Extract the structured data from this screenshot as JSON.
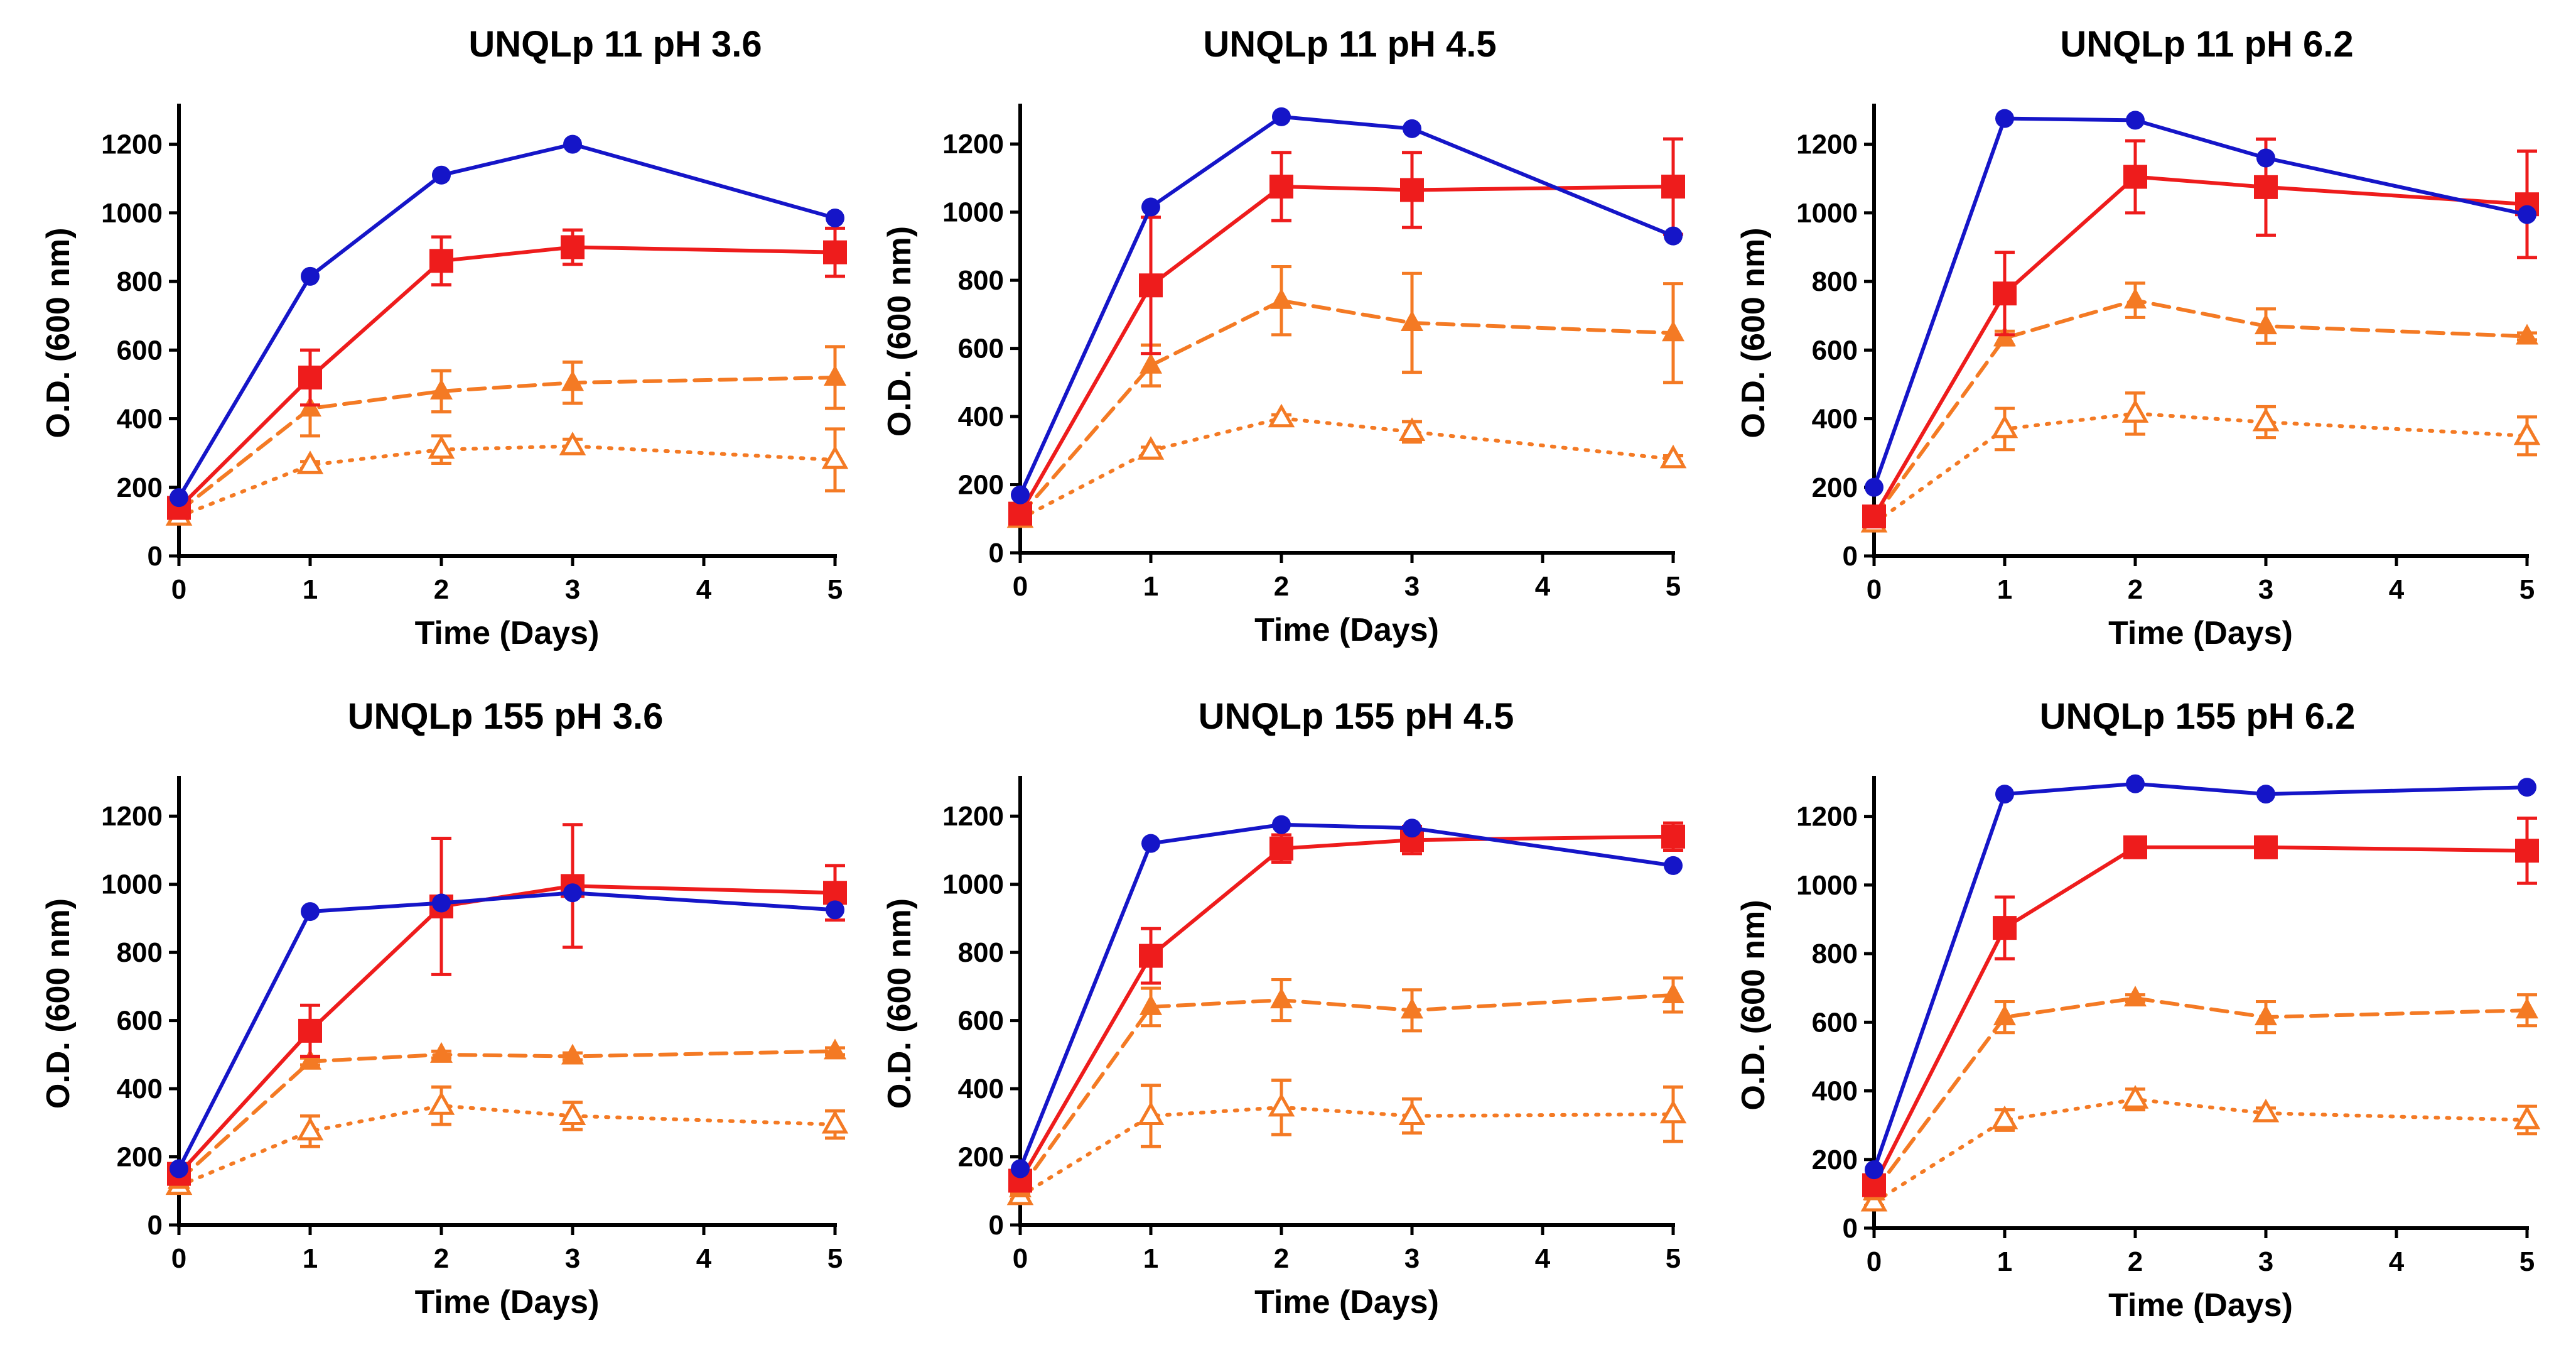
{
  "colors": {
    "blue": "#1515c8",
    "red": "#ee1c1c",
    "orange": "#f47a24"
  },
  "chart_data": [
    {
      "type": "line",
      "title": "UNQLp 11 pH 3.6",
      "xlabel": "Time (Days)",
      "ylabel": "O.D. (600 nm)",
      "xlim": [
        0,
        5
      ],
      "ylim": [
        0,
        1300
      ],
      "xticks": [
        "0",
        "1",
        "2",
        "3",
        "4",
        "5"
      ],
      "yticks": [
        "0",
        "200",
        "400",
        "600",
        "800",
        "1000",
        "1200"
      ],
      "series": [
        {
          "name": "blue-circles",
          "x": [
            0,
            1,
            2,
            3,
            5
          ],
          "values": [
            170,
            815,
            1110,
            1200,
            985
          ],
          "errors": [
            0,
            0,
            0,
            0,
            0
          ]
        },
        {
          "name": "red-squares",
          "x": [
            0,
            1,
            2,
            3,
            5
          ],
          "values": [
            140,
            520,
            860,
            900,
            885
          ],
          "errors": [
            20,
            80,
            70,
            50,
            70
          ]
        },
        {
          "name": "orange-filled-triangles",
          "x": [
            0,
            1,
            2,
            3,
            5
          ],
          "values": [
            130,
            430,
            480,
            505,
            520
          ],
          "errors": [
            20,
            80,
            60,
            60,
            90
          ]
        },
        {
          "name": "orange-open-triangles",
          "x": [
            0,
            1,
            2,
            3,
            5
          ],
          "values": [
            115,
            265,
            310,
            320,
            280
          ],
          "errors": [
            10,
            10,
            40,
            20,
            90
          ]
        }
      ]
    },
    {
      "type": "line",
      "title": "UNQLp 11 pH 4.5",
      "xlabel": "Time (Days)",
      "ylabel": "O.D. (600 nm)",
      "xlim": [
        0,
        5
      ],
      "ylim": [
        0,
        1300
      ],
      "xticks": [
        "0",
        "1",
        "2",
        "3",
        "4",
        "5"
      ],
      "yticks": [
        "0",
        "200",
        "400",
        "600",
        "800",
        "1000",
        "1200"
      ],
      "series": [
        {
          "name": "blue-circles",
          "x": [
            0,
            1,
            2,
            3,
            5
          ],
          "values": [
            170,
            1015,
            1280,
            1245,
            930
          ],
          "errors": [
            0,
            0,
            0,
            0,
            0
          ]
        },
        {
          "name": "red-squares",
          "x": [
            0,
            1,
            2,
            3,
            5
          ],
          "values": [
            115,
            785,
            1075,
            1065,
            1075
          ],
          "errors": [
            20,
            200,
            100,
            110,
            140
          ]
        },
        {
          "name": "orange-filled-triangles",
          "x": [
            0,
            1,
            2,
            3,
            5
          ],
          "values": [
            110,
            550,
            740,
            675,
            645
          ],
          "errors": [
            20,
            60,
            100,
            145,
            145
          ]
        },
        {
          "name": "orange-open-triangles",
          "x": [
            0,
            1,
            2,
            3,
            5
          ],
          "values": [
            100,
            300,
            395,
            355,
            275
          ],
          "errors": [
            10,
            10,
            10,
            30,
            10
          ]
        }
      ]
    },
    {
      "type": "line",
      "title": "UNQLp 11 pH 6.2",
      "xlabel": "Time (Days)",
      "ylabel": "O.D. (600 nm)",
      "xlim": [
        0,
        5
      ],
      "ylim": [
        0,
        1300
      ],
      "xticks": [
        "0",
        "1",
        "2",
        "3",
        "4",
        "5"
      ],
      "yticks": [
        "0",
        "200",
        "400",
        "600",
        "800",
        "1000",
        "1200"
      ],
      "series": [
        {
          "name": "blue-circles",
          "x": [
            0,
            1,
            2,
            3,
            5
          ],
          "values": [
            200,
            1275,
            1270,
            1160,
            995
          ],
          "errors": [
            0,
            0,
            0,
            0,
            0
          ]
        },
        {
          "name": "red-squares",
          "x": [
            0,
            1,
            2,
            3,
            5
          ],
          "values": [
            115,
            765,
            1105,
            1075,
            1025
          ],
          "errors": [
            20,
            120,
            105,
            140,
            155
          ]
        },
        {
          "name": "orange-filled-triangles",
          "x": [
            0,
            1,
            2,
            3,
            5
          ],
          "values": [
            110,
            635,
            745,
            670,
            640
          ],
          "errors": [
            15,
            20,
            50,
            50,
            10
          ]
        },
        {
          "name": "orange-open-triangles",
          "x": [
            0,
            1,
            2,
            3,
            5
          ],
          "values": [
            95,
            370,
            415,
            390,
            350
          ],
          "errors": [
            10,
            60,
            60,
            45,
            55
          ]
        }
      ]
    },
    {
      "type": "line",
      "title": "UNQLp 155 pH 3.6",
      "xlabel": "Time (Days)",
      "ylabel": "O.D. (600 nm)",
      "xlim": [
        0,
        5
      ],
      "ylim": [
        0,
        1300
      ],
      "xticks": [
        "0",
        "1",
        "2",
        "3",
        "4",
        "5"
      ],
      "yticks": [
        "0",
        "200",
        "400",
        "600",
        "800",
        "1000",
        "1200"
      ],
      "series": [
        {
          "name": "blue-circles",
          "x": [
            0,
            1,
            2,
            3,
            5
          ],
          "values": [
            165,
            920,
            945,
            975,
            925
          ],
          "errors": [
            0,
            0,
            0,
            0,
            0
          ]
        },
        {
          "name": "red-squares",
          "x": [
            0,
            1,
            2,
            3,
            5
          ],
          "values": [
            150,
            570,
            935,
            995,
            975
          ],
          "errors": [
            20,
            75,
            200,
            180,
            80
          ]
        },
        {
          "name": "orange-filled-triangles",
          "x": [
            0,
            1,
            2,
            3,
            5
          ],
          "values": [
            130,
            480,
            500,
            495,
            510
          ],
          "errors": [
            15,
            10,
            10,
            10,
            10
          ]
        },
        {
          "name": "orange-open-triangles",
          "x": [
            0,
            1,
            2,
            3,
            5
          ],
          "values": [
            115,
            275,
            350,
            320,
            295
          ],
          "errors": [
            10,
            45,
            55,
            40,
            40
          ]
        }
      ]
    },
    {
      "type": "line",
      "title": "UNQLp 155 pH 4.5",
      "xlabel": "Time (Days)",
      "ylabel": "O.D. (600 nm)",
      "xlim": [
        0,
        5
      ],
      "ylim": [
        0,
        1300
      ],
      "xticks": [
        "0",
        "1",
        "2",
        "3",
        "4",
        "5"
      ],
      "yticks": [
        "0",
        "200",
        "400",
        "600",
        "800",
        "1000",
        "1200"
      ],
      "series": [
        {
          "name": "blue-circles",
          "x": [
            0,
            1,
            2,
            3,
            5
          ],
          "values": [
            165,
            1120,
            1175,
            1165,
            1055
          ],
          "errors": [
            0,
            0,
            0,
            0,
            0
          ]
        },
        {
          "name": "red-squares",
          "x": [
            0,
            1,
            2,
            3,
            5
          ],
          "values": [
            130,
            790,
            1105,
            1130,
            1140
          ],
          "errors": [
            20,
            80,
            40,
            40,
            40
          ]
        },
        {
          "name": "orange-filled-triangles",
          "x": [
            0,
            1,
            2,
            3,
            5
          ],
          "values": [
            105,
            640,
            660,
            630,
            675
          ],
          "errors": [
            15,
            55,
            60,
            60,
            50
          ]
        },
        {
          "name": "orange-open-triangles",
          "x": [
            0,
            1,
            2,
            3,
            5
          ],
          "values": [
            85,
            320,
            345,
            320,
            325
          ],
          "errors": [
            10,
            90,
            80,
            50,
            80
          ]
        }
      ]
    },
    {
      "type": "line",
      "title": "UNQLp 155 pH 6.2",
      "xlabel": "Time (Days)",
      "ylabel": "O.D. (600 nm)",
      "xlim": [
        0,
        5
      ],
      "ylim": [
        0,
        1300
      ],
      "xticks": [
        "0",
        "1",
        "2",
        "3",
        "4",
        "5"
      ],
      "yticks": [
        "0",
        "200",
        "400",
        "600",
        "800",
        "1000",
        "1200"
      ],
      "series": [
        {
          "name": "blue-circles",
          "x": [
            0,
            1,
            2,
            3,
            5
          ],
          "values": [
            170,
            1265,
            1295,
            1265,
            1285
          ],
          "errors": [
            0,
            0,
            0,
            0,
            0
          ]
        },
        {
          "name": "red-squares",
          "x": [
            0,
            1,
            2,
            3,
            5
          ],
          "values": [
            125,
            875,
            1110,
            1110,
            1100
          ],
          "errors": [
            20,
            90,
            20,
            30,
            95
          ]
        },
        {
          "name": "orange-filled-triangles",
          "x": [
            0,
            1,
            2,
            3,
            5
          ],
          "values": [
            105,
            615,
            670,
            615,
            635
          ],
          "errors": [
            15,
            45,
            10,
            45,
            45
          ]
        },
        {
          "name": "orange-open-triangles",
          "x": [
            0,
            1,
            2,
            3,
            5
          ],
          "values": [
            75,
            315,
            375,
            335,
            315
          ],
          "errors": [
            10,
            30,
            30,
            15,
            40
          ]
        }
      ]
    }
  ]
}
